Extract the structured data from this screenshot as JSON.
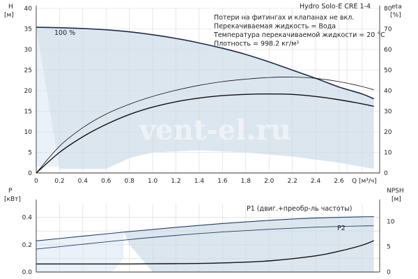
{
  "chart_data": [
    {
      "type": "line",
      "title": "Hydro Solo-E CRE 1-4",
      "notes": [
        "Потери на фитингах и клапанах не вкл.",
        "Перекачиваемая жидкость = Вода",
        "Температура перекачиваемой жидкости = 20 °C",
        "Плотность = 998.2 кг/м³"
      ],
      "curve_label": "100 %",
      "watermark": "vent-el.ru",
      "xlabel": "Q [м³/ч]",
      "ylabel": "H\n[м]",
      "y2label": "eta\n[%]",
      "xlim": [
        0,
        2.95
      ],
      "ylim": [
        0,
        40
      ],
      "y2lim": [
        0,
        80
      ],
      "xticks": [
        "0",
        "0.2",
        "0.4",
        "0.6",
        "0.8",
        "1.0",
        "1.2",
        "1.4",
        "1.6",
        "1.8",
        "2.0",
        "2.2",
        "2.4",
        "2.6"
      ],
      "yticks": [
        "0",
        "5",
        "10",
        "15",
        "20",
        "25",
        "30",
        "35",
        "40"
      ],
      "y2ticks": [
        "0",
        "10",
        "20",
        "30",
        "40",
        "50",
        "60",
        "70",
        "80"
      ],
      "grid": true,
      "series": [
        {
          "x": [
            0,
            0.2,
            0.4,
            0.6,
            0.8,
            1.0,
            1.2,
            1.4,
            1.6,
            1.8,
            2.0,
            2.2,
            2.4,
            2.6,
            2.8,
            2.9
          ],
          "values": [
            35.4,
            35.3,
            35.1,
            34.8,
            34.3,
            33.6,
            32.7,
            31.6,
            30.3,
            28.8,
            27.0,
            25.0,
            23.0,
            20.9,
            19.2,
            18.0
          ]
        },
        {
          "axis": "right",
          "x": [
            0,
            0.2,
            0.4,
            0.6,
            0.8,
            1.0,
            1.2,
            1.4,
            1.6,
            1.8,
            2.0,
            2.2,
            2.4,
            2.6,
            2.8,
            2.9
          ],
          "values": [
            0,
            13,
            22,
            28.6,
            33.4,
            37.2,
            40.2,
            42.6,
            44.4,
            45.6,
            46.4,
            46.6,
            46.0,
            44.4,
            42.0,
            40.4
          ]
        },
        {
          "axis": "right",
          "x": [
            0,
            0.2,
            0.4,
            0.6,
            0.8,
            1.0,
            1.2,
            1.4,
            1.6,
            1.8,
            2.0,
            2.2,
            2.4,
            2.6,
            2.8,
            2.9
          ],
          "values": [
            0,
            10,
            17.6,
            23.6,
            28.4,
            32,
            34.6,
            36.4,
            37.6,
            38.2,
            38.4,
            38.2,
            37.2,
            35.6,
            33.6,
            32.4
          ]
        }
      ],
      "areas": [
        {
          "polygon": [
            [
              0,
              35.4
            ],
            [
              0.8,
              34.3
            ],
            [
              1.2,
              32.7
            ],
            [
              1.6,
              30.3
            ],
            [
              2.0,
              27.0
            ],
            [
              2.4,
              23.0
            ],
            [
              2.8,
              19.2
            ],
            [
              2.9,
              18.0
            ],
            [
              2.9,
              1.0
            ],
            [
              2.6,
              2.5
            ],
            [
              2.2,
              4.0
            ],
            [
              1.8,
              5.0
            ],
            [
              1.4,
              5.5
            ],
            [
              1.0,
              5.0
            ],
            [
              0.8,
              3.6
            ],
            [
              0.6,
              1.0
            ],
            [
              0.2,
              1.0
            ]
          ]
        },
        {
          "polygon": [
            [
              0,
              35.4
            ],
            [
              0.8,
              34.3
            ],
            [
              0.8,
              34.0
            ],
            [
              0.7,
              28.0
            ],
            [
              0.6,
              22.0
            ],
            [
              0.5,
              16.0
            ],
            [
              0.4,
              10.0
            ],
            [
              0.3,
              5.0
            ],
            [
              0.2,
              1.5
            ],
            [
              0,
              1.5
            ]
          ]
        }
      ]
    },
    {
      "type": "line",
      "ylabel": "P\n[кВт]",
      "y2label": "NPSH\n[м]",
      "xlim": [
        0,
        2.95
      ],
      "ylim": [
        0,
        0.5
      ],
      "y2lim": [
        0,
        13.5
      ],
      "yticks": [
        "0.0",
        "0.2",
        "0.4"
      ],
      "y2ticks": [
        "0",
        "5",
        "10"
      ],
      "grid": true,
      "series": [
        {
          "name": "P1 (двиг.+преобр-ль частоты)",
          "x": [
            0,
            0.4,
            0.8,
            1.2,
            1.6,
            2.0,
            2.4,
            2.8,
            2.9
          ],
          "values": [
            0.228,
            0.262,
            0.296,
            0.327,
            0.355,
            0.378,
            0.395,
            0.404,
            0.405
          ]
        },
        {
          "name": "P2",
          "x": [
            0,
            0.4,
            0.8,
            1.2,
            1.6,
            2.0,
            2.4,
            2.8,
            2.9
          ],
          "values": [
            0.168,
            0.203,
            0.238,
            0.268,
            0.293,
            0.313,
            0.328,
            0.337,
            0.338
          ]
        },
        {
          "axis": "right",
          "x": [
            0,
            0.4,
            0.8,
            1.2,
            1.6,
            2.0,
            2.4,
            2.6,
            2.8,
            2.9
          ],
          "values": [
            1.6,
            1.6,
            1.6,
            1.65,
            1.8,
            2.2,
            3.2,
            4.1,
            5.3,
            6.2
          ]
        }
      ],
      "areas": [
        {
          "polygon": [
            [
              0.75,
              0.296
            ],
            [
              1.2,
              0.327
            ],
            [
              1.6,
              0.355
            ],
            [
              2.0,
              0.378
            ],
            [
              2.4,
              0.395
            ],
            [
              2.9,
              0.405
            ],
            [
              2.9,
              0.0
            ],
            [
              1.0,
              0.0
            ],
            [
              0.9,
              0.1
            ],
            [
              0.8,
              0.2
            ]
          ]
        },
        {
          "polygon": [
            [
              0,
              0.228
            ],
            [
              0.75,
              0.296
            ],
            [
              0.75,
              0.1
            ],
            [
              0.65,
              0.0
            ],
            [
              0,
              0.0
            ]
          ]
        }
      ]
    }
  ]
}
